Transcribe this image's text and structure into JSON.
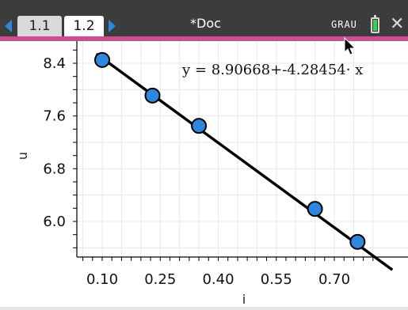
{
  "header": {
    "tabs": [
      {
        "label": "1.1",
        "active": false
      },
      {
        "label": "1.2",
        "active": true
      }
    ],
    "doc_title": "*Doc",
    "angle_mode": "GRAU"
  },
  "graph": {
    "regression_text": "y = 8.90668+-4.28454· x",
    "ylabel": "u",
    "xlabel": "i",
    "points": [
      {
        "x": 0.1,
        "y": 8.45
      },
      {
        "x": 0.23,
        "y": 7.91
      },
      {
        "x": 0.35,
        "y": 7.45
      },
      {
        "x": 0.65,
        "y": 6.19
      },
      {
        "x": 0.76,
        "y": 5.69
      }
    ],
    "x_ticks": [
      "0.10",
      "0.25",
      "0.40",
      "0.55",
      "0.70"
    ],
    "y_ticks": [
      "6.0",
      "6.8",
      "7.6",
      "8.4"
    ],
    "line": {
      "intercept": 8.90668,
      "slope": -4.28454
    },
    "point_color": "#2e86de"
  }
}
